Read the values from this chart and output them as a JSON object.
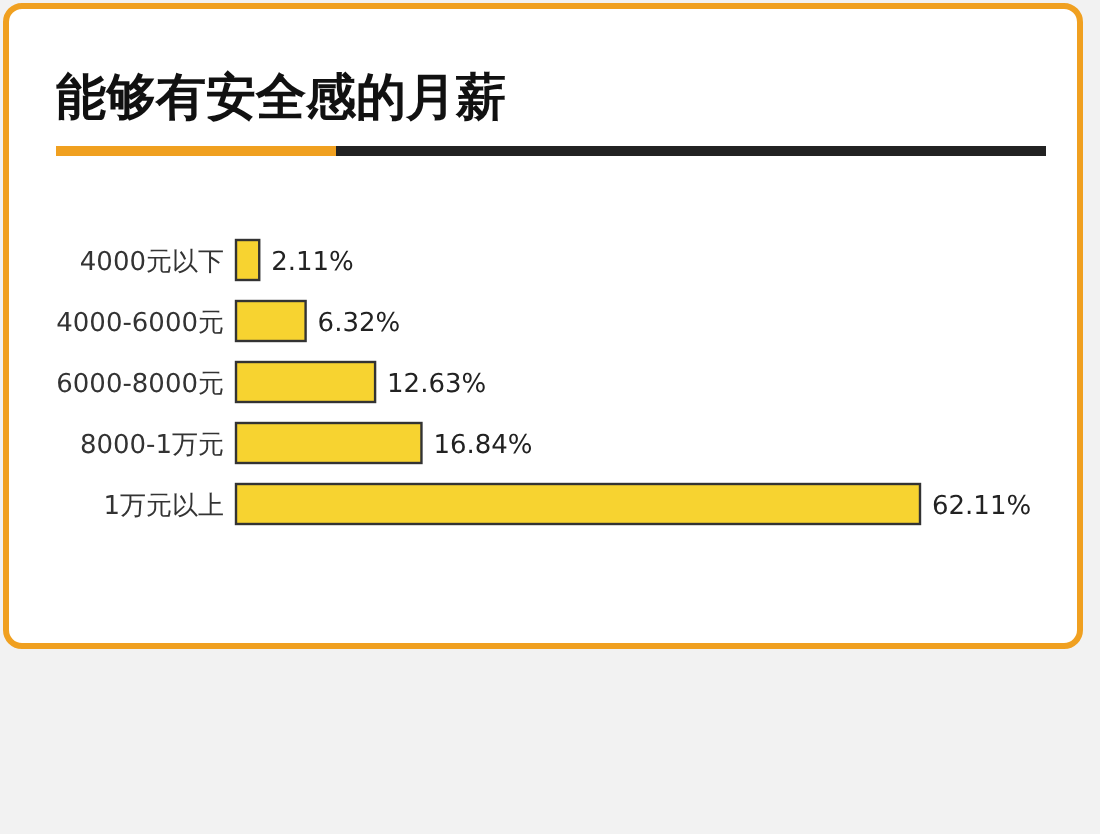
{
  "chart_data": {
    "type": "bar",
    "orientation": "horizontal",
    "title": "能够有安全感的月薪",
    "categories": [
      "4000元以下",
      "4000-6000元",
      "6000-8000元",
      "8000-1万元",
      "1万元以上"
    ],
    "values": [
      2.11,
      6.32,
      12.63,
      16.84,
      62.11
    ],
    "value_labels": [
      "2.11%",
      "6.32%",
      "12.63%",
      "16.84%",
      "62.11%"
    ],
    "color": "#f7d330"
  }
}
